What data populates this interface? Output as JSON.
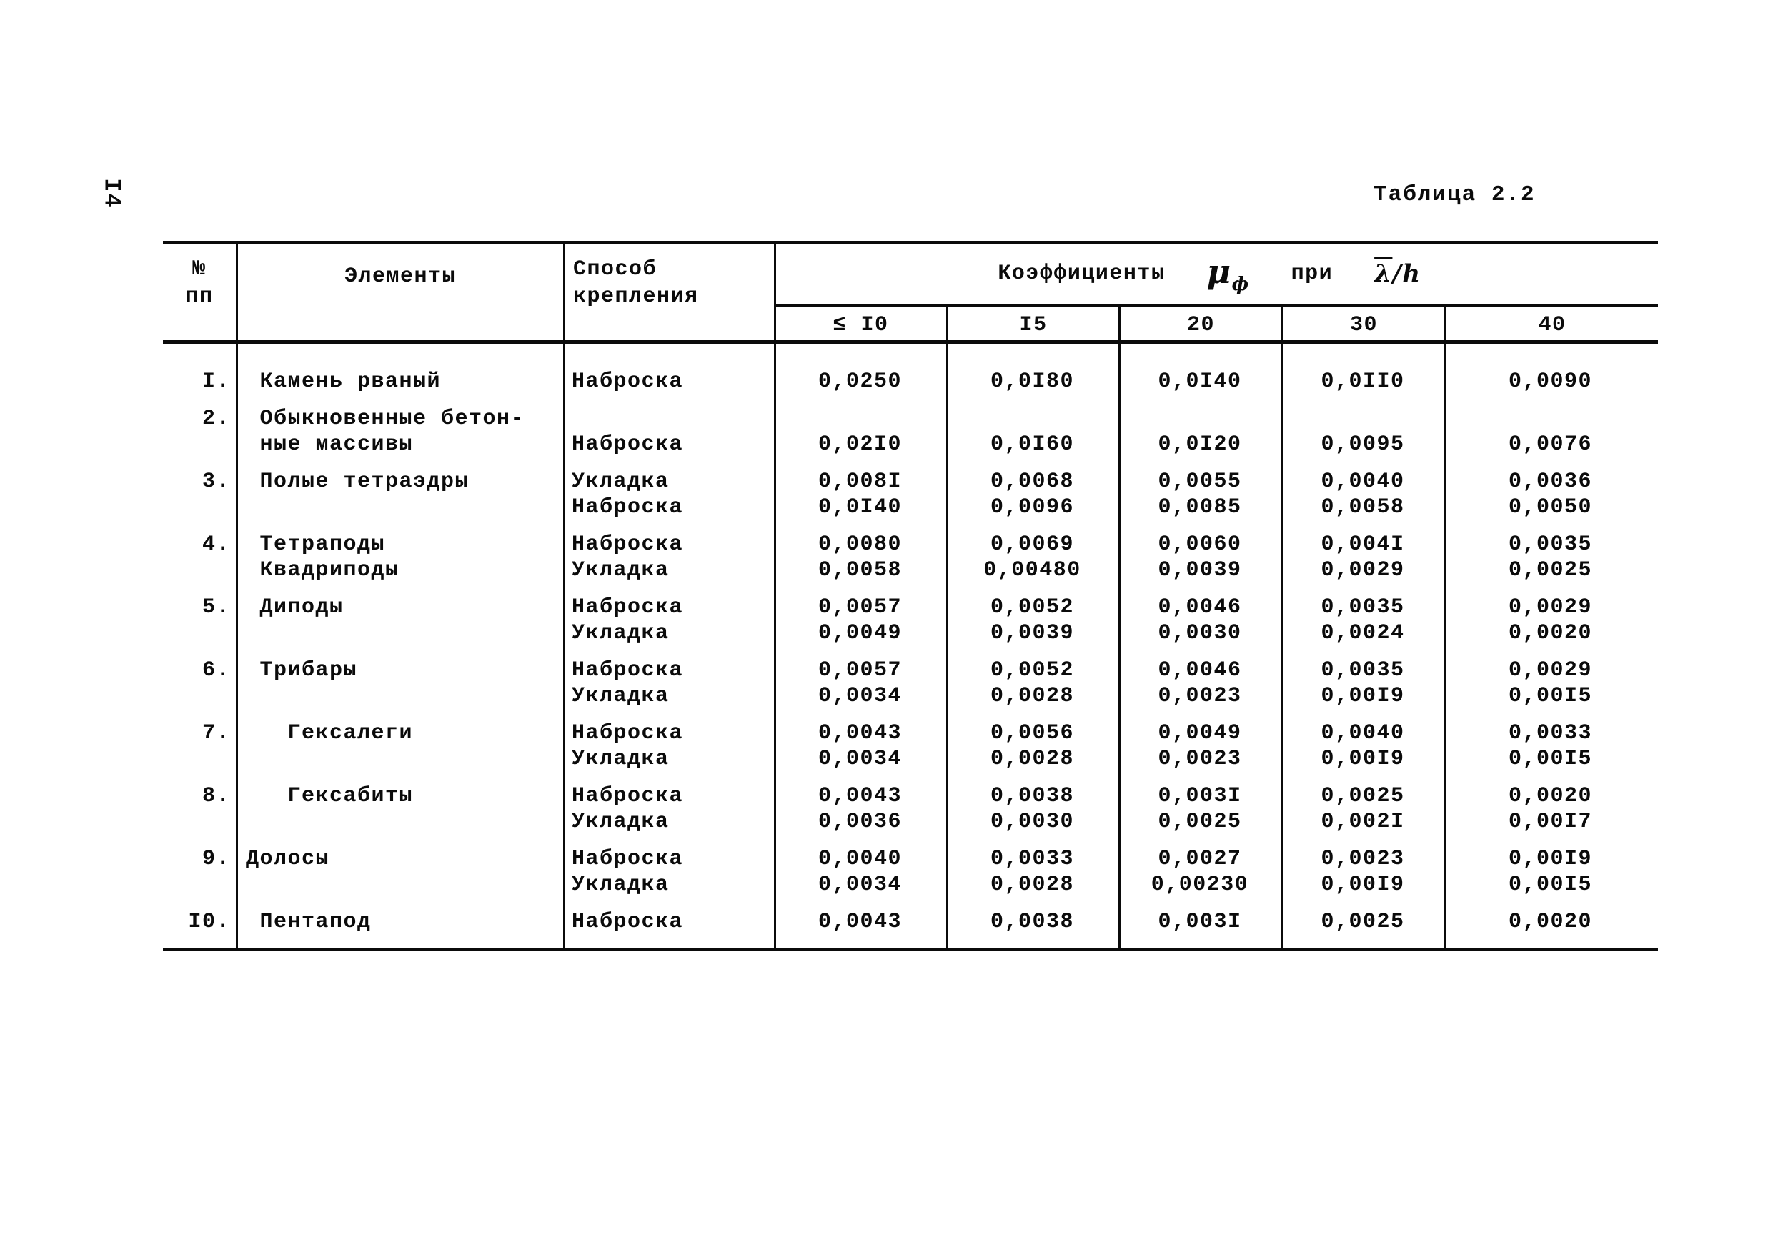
{
  "page": {
    "number": "I4",
    "title": "Таблица 2.2"
  },
  "table": {
    "header": {
      "no": [
        "№",
        "пп"
      ],
      "elements": "Элементы",
      "method": [
        "Способ",
        "крепления"
      ],
      "coeff": {
        "label": "Коэффициенты",
        "mu": "μ",
        "mu_sub": "ф",
        "pri": "при",
        "lambda": "λ",
        "slash": "/",
        "h": "h"
      },
      "cols": [
        "≤ I0",
        "I5",
        "20",
        "30",
        "40"
      ]
    },
    "groups": [
      {
        "lines": [
          {
            "no": "I.",
            "element": " Камень рваный",
            "method": "Наброска",
            "values": [
              "0,0250",
              "0,0I80",
              "0,0I40",
              "0,0II0",
              "0,0090"
            ]
          }
        ]
      },
      {
        "lines": [
          {
            "no": "2.",
            "element": " Обыкновенные бетон-",
            "method": "",
            "values": [
              "",
              "",
              "",
              "",
              ""
            ]
          },
          {
            "no": "",
            "element": " ные массивы",
            "method": "Наброска",
            "values": [
              "0,02I0",
              "0,0I60",
              "0,0I20",
              "0,0095",
              "0,0076"
            ]
          }
        ]
      },
      {
        "lines": [
          {
            "no": "3.",
            "element": " Полые тетраэдры",
            "method": "Укладка",
            "values": [
              "0,008I",
              "0,0068",
              "0,0055",
              "0,0040",
              "0,0036"
            ]
          },
          {
            "no": "",
            "element": "",
            "method": "Наброска",
            "values": [
              "0,0I40",
              "0,0096",
              "0,0085",
              "0,0058",
              "0,0050"
            ]
          }
        ]
      },
      {
        "lines": [
          {
            "no": "4.",
            "element": " Тетраподы",
            "method": "Наброска",
            "values": [
              "0,0080",
              "0,0069",
              "0,0060",
              "0,004I",
              "0,0035"
            ]
          },
          {
            "no": "",
            "element": " Квадриподы",
            "method": "Укладка",
            "values": [
              "0,0058",
              "0,00480",
              "0,0039",
              "0,0029",
              "0,0025"
            ]
          }
        ]
      },
      {
        "lines": [
          {
            "no": "5.",
            "element": " Диподы",
            "method": "Наброска",
            "values": [
              "0,0057",
              "0,0052",
              "0,0046",
              "0,0035",
              "0,0029"
            ]
          },
          {
            "no": "",
            "element": "",
            "method": "Укладка",
            "values": [
              "0,0049",
              "0,0039",
              "0,0030",
              "0,0024",
              "0,0020"
            ]
          }
        ]
      },
      {
        "lines": [
          {
            "no": "6.",
            "element": " Трибары",
            "method": "Наброска",
            "values": [
              "0,0057",
              "0,0052",
              "0,0046",
              "0,0035",
              "0,0029"
            ]
          },
          {
            "no": "",
            "element": "",
            "method": "Укладка",
            "values": [
              "0,0034",
              "0,0028",
              "0,0023",
              "0,00I9",
              "0,00I5"
            ]
          }
        ]
      },
      {
        "lines": [
          {
            "no": "7.",
            "element": "   Гексалеги",
            "method": "Наброска",
            "values": [
              "0,0043",
              "0,0056",
              "0,0049",
              "0,0040",
              "0,0033"
            ]
          },
          {
            "no": "",
            "element": "",
            "method": "Укладка",
            "values": [
              "0,0034",
              "0,0028",
              "0,0023",
              "0,00I9",
              "0,00I5"
            ]
          }
        ]
      },
      {
        "lines": [
          {
            "no": "8.",
            "element": "   Гексабиты",
            "method": "Наброска",
            "values": [
              "0,0043",
              "0,0038",
              "0,003I",
              "0,0025",
              "0,0020"
            ]
          },
          {
            "no": "",
            "element": "",
            "method": "Укладка",
            "values": [
              "0,0036",
              "0,0030",
              "0,0025",
              "0,002I",
              "0,00I7"
            ]
          }
        ]
      },
      {
        "lines": [
          {
            "no": "9.",
            "element": "Долосы",
            "method": "Наброска",
            "values": [
              "0,0040",
              "0,0033",
              "0,0027",
              "0,0023",
              "0,00I9"
            ]
          },
          {
            "no": "",
            "element": "",
            "method": "Укладка",
            "values": [
              "0,0034",
              "0,0028",
              "0,00230",
              "0,00I9",
              "0,00I5"
            ]
          }
        ]
      },
      {
        "lines": [
          {
            "no": "I0.",
            "element": " Пентапод",
            "method": "Наброска",
            "values": [
              "0,0043",
              "0,0038",
              "0,003I",
              "0,0025",
              "0,0020"
            ]
          }
        ]
      }
    ]
  }
}
